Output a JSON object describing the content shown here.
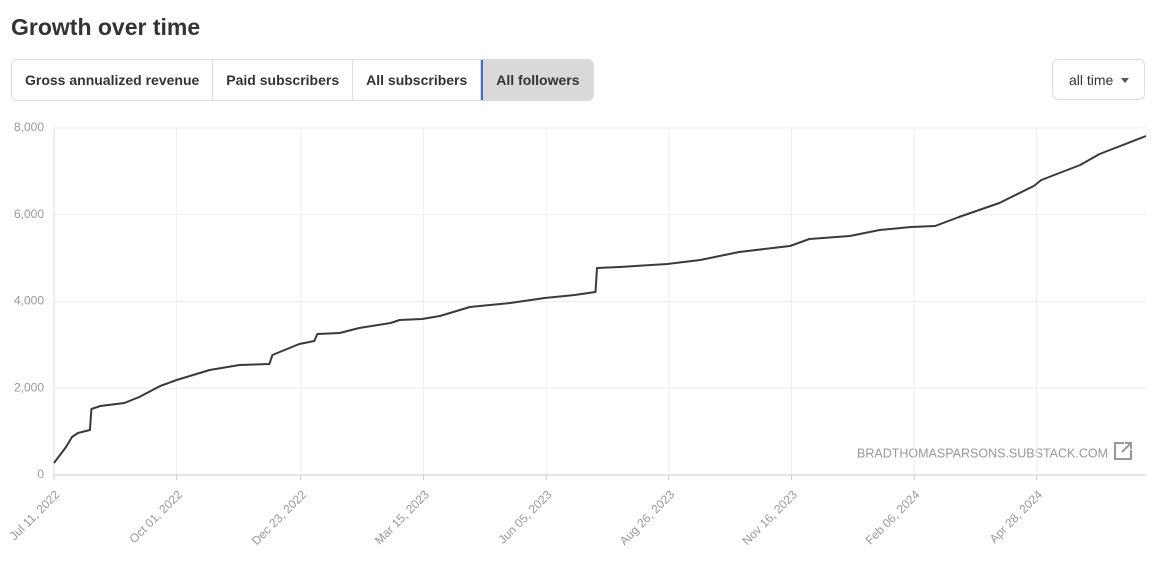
{
  "header": {
    "title": "Growth over time"
  },
  "tabs": [
    "Gross annualized revenue",
    "Paid subscribers",
    "All subscribers",
    "All followers"
  ],
  "range_select": "all time",
  "chart_data": {
    "type": "line",
    "watermark": "BRADTHOMASPARSONS.SUBSTACK.COM",
    "color": "#3a3a3a",
    "grid": true,
    "x": [
      "2022-07-11",
      "2022-07-15",
      "2022-07-19",
      "2022-07-23",
      "2022-07-27",
      "2022-08-04",
      "2022-08-05",
      "2022-08-11",
      "2022-08-27",
      "2022-09-06",
      "2022-09-20",
      "2022-10-01",
      "2022-10-23",
      "2022-11-12",
      "2022-12-02",
      "2022-12-04",
      "2022-12-22",
      "2023-01-01",
      "2023-01-03",
      "2023-01-18",
      "2023-01-31",
      "2023-02-21",
      "2023-02-27",
      "2023-03-14",
      "2023-03-26",
      "2023-04-15",
      "2023-05-12",
      "2023-06-04",
      "2023-06-24",
      "2023-07-08",
      "2023-07-09",
      "2023-07-24",
      "2023-08-25",
      "2023-09-16",
      "2023-10-12",
      "2023-11-15",
      "2023-11-28",
      "2023-12-25",
      "2024-01-14",
      "2024-02-04",
      "2024-02-20",
      "2024-03-07",
      "2024-04-03",
      "2024-04-26",
      "2024-05-01",
      "2024-05-27",
      "2024-06-09",
      "2024-07-10"
    ],
    "values": [
      277,
      461,
      645,
      876,
      968,
      1037,
      1522,
      1591,
      1660,
      1798,
      2052,
      2190,
      2421,
      2536,
      2559,
      2767,
      3020,
      3089,
      3251,
      3274,
      3389,
      3504,
      3573,
      3596,
      3666,
      3873,
      3965,
      4081,
      4150,
      4219,
      4772,
      4795,
      4864,
      4957,
      5141,
      5280,
      5441,
      5510,
      5648,
      5718,
      5741,
      5948,
      6271,
      6663,
      6801,
      7147,
      7401,
      7816
    ],
    "xlim": [
      "2022-07-11",
      "2024-07-10"
    ],
    "xticks": [
      {
        "value": "2022-07-11",
        "label": "Jul 11, 2022"
      },
      {
        "value": "2022-10-01",
        "label": "Oct 01, 2022"
      },
      {
        "value": "2022-12-23",
        "label": "Dec 23, 2022"
      },
      {
        "value": "2023-03-15",
        "label": "Mar 15, 2023"
      },
      {
        "value": "2023-06-05",
        "label": "Jun 05, 2023"
      },
      {
        "value": "2023-08-26",
        "label": "Aug 26, 2023"
      },
      {
        "value": "2023-11-16",
        "label": "Nov 16, 2023"
      },
      {
        "value": "2024-02-06",
        "label": "Feb 06, 2024"
      },
      {
        "value": "2024-04-28",
        "label": "Apr 28, 2024"
      }
    ],
    "ylim": [
      0,
      8000
    ],
    "yticks": [
      0,
      {
        "value": 2000,
        "label": "2,000"
      },
      {
        "value": 4000,
        "label": "4,000"
      },
      {
        "value": 6000,
        "label": "6,000"
      },
      {
        "value": 8000,
        "label": "8,000"
      }
    ]
  }
}
